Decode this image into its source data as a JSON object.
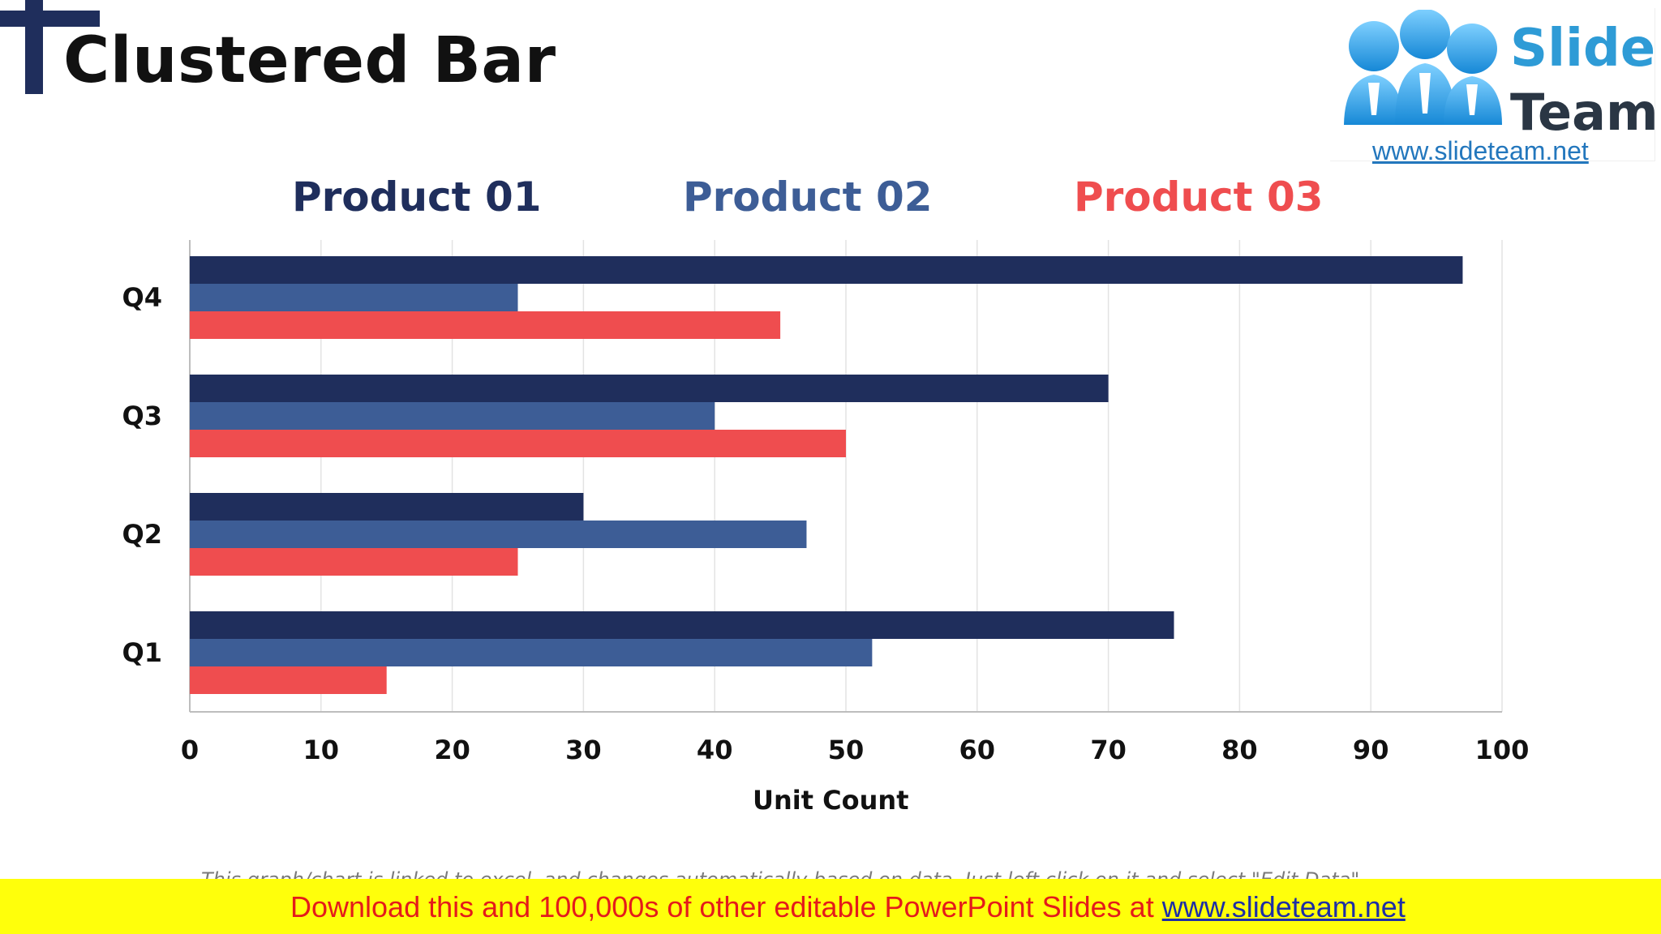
{
  "slide": {
    "title": "Clustered Bar"
  },
  "logo": {
    "word1": "Slide",
    "word2": "Team",
    "url": "www.slideteam.net"
  },
  "colors": {
    "title_accent": "#1f2e5c",
    "product01": "#1f2e5c",
    "product02": "#3d5d96",
    "product03": "#ef4d4f",
    "banner_bg": "#ffff0b",
    "banner_text": "#e41b1b",
    "banner_link": "#1d2ea6"
  },
  "legend": [
    {
      "label": "Product 01",
      "color": "#1f2e5c"
    },
    {
      "label": "Product 02",
      "color": "#3d5d96"
    },
    {
      "label": "Product 03",
      "color": "#ef4d4f"
    }
  ],
  "chart_data": {
    "type": "bar",
    "orientation": "horizontal",
    "categories": [
      "Q4",
      "Q3",
      "Q2",
      "Q1"
    ],
    "series": [
      {
        "name": "Product 01",
        "color": "#1f2e5c",
        "values": [
          97,
          70,
          30,
          75
        ]
      },
      {
        "name": "Product 02",
        "color": "#3d5d96",
        "values": [
          25,
          40,
          47,
          52
        ]
      },
      {
        "name": "Product 03",
        "color": "#ef4d4f",
        "values": [
          45,
          50,
          25,
          15
        ]
      }
    ],
    "xlabel": "Unit Count",
    "xlim": [
      0,
      100
    ],
    "xticks": [
      0,
      10,
      20,
      30,
      40,
      50,
      60,
      70,
      80,
      90,
      100
    ],
    "grid": "vertical",
    "legend_position": "top"
  },
  "footer": {
    "note": "This graph/chart is linked to excel, and changes automatically based on data. Just left click on it and select \"Edit Data\".",
    "banner_text": "Download this and 100,000s of other editable PowerPoint Slides at ",
    "banner_link": "www.slideteam.net"
  }
}
